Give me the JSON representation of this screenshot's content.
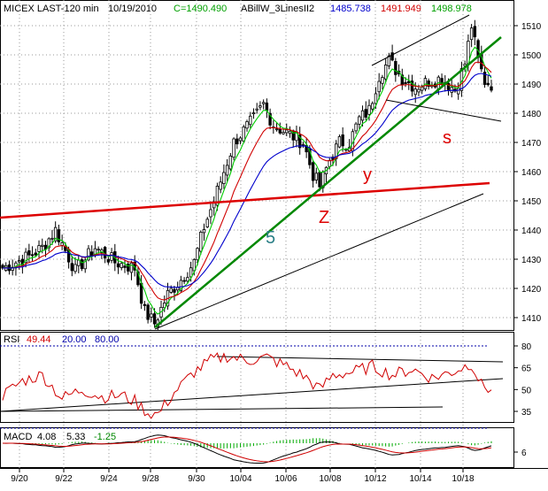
{
  "header": {
    "symbol": "MICEX LAST-120 min",
    "date": "10/19/2010",
    "close_text": "C=1490.490",
    "study_name": "ABillW_3LinesII2",
    "study_v1": "1485.738",
    "study_v2": "1491.949",
    "study_v3": "1498.978"
  },
  "colors": {
    "background": "#ffffff",
    "candle": "#000000",
    "ma_fast": "#00cc00",
    "ma_mid": "#d00000",
    "ma_slow": "#0000cc",
    "trend_green": "#008800",
    "trend_red": "#dd0000",
    "label_red": "#dd0000",
    "label_teal": "#2a7f86",
    "grid": "#999999",
    "rsi_line": "#d00000",
    "rsi_level": "#0000aa",
    "macd_line": "#000000",
    "macd_signal": "#d00000",
    "macd_hist": "#00aa00"
  },
  "annotations": {
    "wave_5": "5",
    "wave_z": "Z",
    "wave_y": "y",
    "wave_s": "s"
  },
  "rsi": {
    "label": "RSI",
    "value": "49.44",
    "low": "20.00",
    "high": "80.00"
  },
  "macd": {
    "label": "MACD",
    "v1": "4.08",
    "v2": "5.33",
    "v3": "-1.25"
  },
  "chart_data": [
    {
      "type": "candlestick",
      "title": "MICEX LAST-120 min",
      "y_ticks": [
        1410,
        1420,
        1430,
        1440,
        1450,
        1460,
        1470,
        1480,
        1490,
        1500,
        1510
      ],
      "ylim": [
        1403,
        1516
      ],
      "x_ticks": [
        "9/20",
        "9/22",
        "9/24",
        "9/28",
        "9/30",
        "10/04",
        "10/06",
        "10/08",
        "10/12",
        "10/14",
        "10/18"
      ],
      "close_anchors": [
        [
          0,
          1427
        ],
        [
          8,
          1431
        ],
        [
          12,
          1434
        ],
        [
          16,
          1440
        ],
        [
          22,
          1426
        ],
        [
          28,
          1434
        ],
        [
          34,
          1429
        ],
        [
          40,
          1427
        ],
        [
          43,
          1412
        ],
        [
          46,
          1408
        ],
        [
          50,
          1418
        ],
        [
          54,
          1423
        ],
        [
          58,
          1429
        ],
        [
          61,
          1441
        ],
        [
          64,
          1450
        ],
        [
          67,
          1460
        ],
        [
          70,
          1470
        ],
        [
          73,
          1474
        ],
        [
          76,
          1478
        ],
        [
          79,
          1483
        ],
        [
          82,
          1476
        ],
        [
          85,
          1474
        ],
        [
          88,
          1472
        ],
        [
          91,
          1470
        ],
        [
          94,
          1459
        ],
        [
          96,
          1455
        ],
        [
          99,
          1464
        ],
        [
          102,
          1470
        ],
        [
          105,
          1470
        ],
        [
          108,
          1478
        ],
        [
          111,
          1481
        ],
        [
          114,
          1493
        ],
        [
          117,
          1498
        ],
        [
          121,
          1492
        ],
        [
          125,
          1489
        ],
        [
          129,
          1491
        ],
        [
          133,
          1492
        ],
        [
          137,
          1488
        ],
        [
          140,
          1497
        ],
        [
          142,
          1510
        ],
        [
          144,
          1498
        ],
        [
          146,
          1491
        ],
        [
          148,
          1490
        ]
      ],
      "grid": true
    },
    {
      "type": "line",
      "title": "RSI",
      "y_ticks": [
        35,
        50,
        65,
        80
      ],
      "ylim": [
        25,
        85
      ],
      "levels": [
        20,
        80
      ],
      "rsi_anchors": [
        [
          0,
          46
        ],
        [
          6,
          56
        ],
        [
          12,
          60
        ],
        [
          18,
          44
        ],
        [
          24,
          50
        ],
        [
          30,
          45
        ],
        [
          36,
          46
        ],
        [
          40,
          42
        ],
        [
          44,
          34
        ],
        [
          47,
          33
        ],
        [
          52,
          48
        ],
        [
          58,
          62
        ],
        [
          63,
          70
        ],
        [
          68,
          73
        ],
        [
          74,
          70
        ],
        [
          80,
          72
        ],
        [
          86,
          66
        ],
        [
          92,
          58
        ],
        [
          96,
          50
        ],
        [
          100,
          60
        ],
        [
          106,
          62
        ],
        [
          112,
          66
        ],
        [
          118,
          60
        ],
        [
          124,
          64
        ],
        [
          130,
          58
        ],
        [
          136,
          62
        ],
        [
          142,
          68
        ],
        [
          145,
          53
        ],
        [
          148,
          50
        ]
      ]
    },
    {
      "type": "line",
      "title": "MACD",
      "y_ticks": [
        6
      ],
      "ylim": [
        -12,
        16
      ]
    }
  ]
}
